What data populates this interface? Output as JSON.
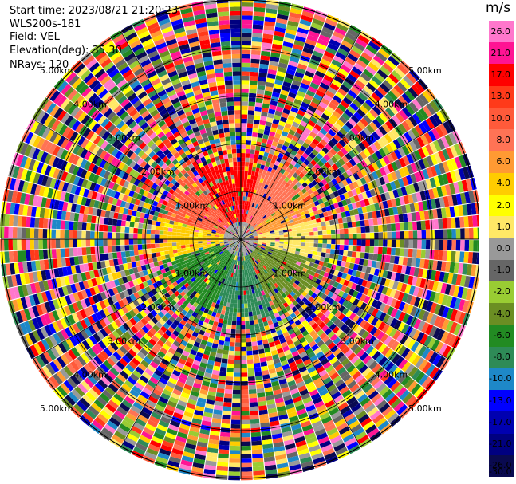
{
  "header": {
    "start_time": "Start time: 2023/08/21 21:20:23",
    "station": "WLS200s-181",
    "field": "Field: VEL",
    "elevation": "Elevation(deg): 35.30",
    "nrays": "NRays: 120"
  },
  "colorbar": {
    "title": "m/s",
    "labels": [
      "26.0",
      "21.0",
      "17.0",
      "13.0",
      "10.0",
      "8.0",
      "6.0",
      "4.0",
      "2.0",
      "1.0",
      "0.0",
      "-1.0",
      "-2.0",
      "-4.0",
      "-6.0",
      "-8.0",
      "-10.0",
      "-13.0",
      "-17.0",
      "-21.0",
      "-26.0",
      "-30.0"
    ],
    "colors": [
      "#ff77cc",
      "#ff1493",
      "#ff0000",
      "#ff3a1a",
      "#ff5a3a",
      "#ff7355",
      "#ff9a33",
      "#ffcc00",
      "#ffff00",
      "#ffe866",
      "#999999",
      "#666666",
      "#99cc33",
      "#6b8e23",
      "#228b22",
      "#2e8b57",
      "#1e88c8",
      "#0000ff",
      "#0000b0",
      "#000080",
      "#0a0a50",
      "#0a0a50"
    ]
  },
  "chart_data": {
    "type": "heatmap",
    "projection": "polar-ppi",
    "field": "VEL",
    "units": "m/s",
    "nrays": 120,
    "range_unit": "km",
    "max_range_km": 5.0,
    "range_ring_labels": [
      "1.00km",
      "2.00km",
      "3.00km",
      "4.00km",
      "5.00km"
    ],
    "color_scale": {
      "bounds": [
        -30,
        -26,
        -21,
        -17,
        -13,
        -10,
        -8,
        -6,
        -4,
        -2,
        -1,
        0,
        1,
        2,
        4,
        6,
        8,
        10,
        13,
        17,
        21,
        26
      ],
      "colors": [
        "#0a0a50",
        "#000080",
        "#0000b0",
        "#0000ff",
        "#1e88c8",
        "#2e8b57",
        "#228b22",
        "#6b8e23",
        "#99cc33",
        "#666666",
        "#999999",
        "#ffe866",
        "#ffff00",
        "#ffcc00",
        "#ff9a33",
        "#ff7355",
        "#ff5a3a",
        "#ff3a1a",
        "#ff0000",
        "#ff1493",
        "#ff77cc"
      ]
    },
    "coherent_region_km": 1.4
  }
}
